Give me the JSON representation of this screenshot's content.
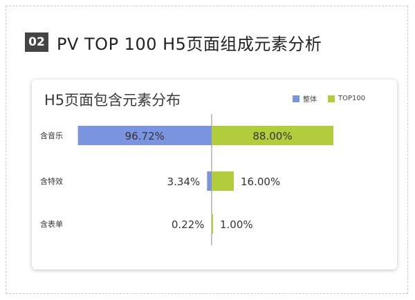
{
  "slide": {
    "badge": "02",
    "title": "PV TOP 100 H5页面组成元素分析"
  },
  "colors": {
    "overall": "#7b94e0",
    "top100": "#b1cd3b",
    "axis": "#8a8a8a"
  },
  "chart_data": {
    "type": "bar",
    "orientation": "horizontal-diverging",
    "title": "H5页面包含元素分布",
    "legend_position": "top-right",
    "categories": [
      "含音乐",
      "含特效",
      "含表单"
    ],
    "series": [
      {
        "name": "整体",
        "values": [
          96.72,
          3.34,
          0.22
        ],
        "labels": [
          "96.72%",
          "3.34%",
          "0.22%"
        ]
      },
      {
        "name": "TOP100",
        "values": [
          88.0,
          16.0,
          1.0
        ],
        "labels": [
          "88.00%",
          "16.00%",
          "1.00%"
        ]
      }
    ],
    "unit": "%",
    "xlim": [
      0,
      100
    ]
  }
}
